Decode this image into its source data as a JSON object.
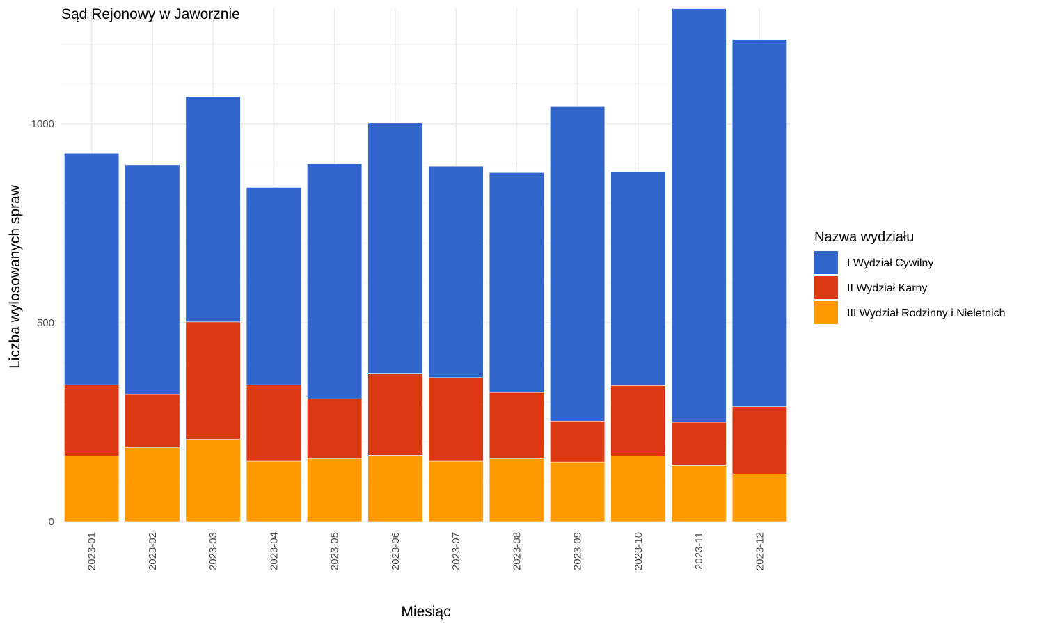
{
  "chart_data": {
    "type": "bar",
    "stacked": true,
    "title": "Sąd Rejonowy w Jaworznie",
    "xlabel": "Miesiąc",
    "ylabel": "Liczba wylosowanych spraw",
    "ylim": [
      0,
      1290
    ],
    "yticks": [
      0,
      500,
      1000
    ],
    "grid": true,
    "legend": {
      "title": "Nazwa wydziału",
      "position": "right"
    },
    "categories": [
      "2023-01",
      "2023-02",
      "2023-03",
      "2023-04",
      "2023-05",
      "2023-06",
      "2023-07",
      "2023-08",
      "2023-09",
      "2023-10",
      "2023-11",
      "2023-12"
    ],
    "series": [
      {
        "name": "III Wydział Rodzinny i Nieletnich",
        "color": "#FF9900",
        "values": [
          165,
          186,
          207,
          152,
          158,
          167,
          152,
          158,
          150,
          165,
          141,
          120
        ]
      },
      {
        "name": "II Wydział Karny",
        "color": "#DC3912",
        "values": [
          179,
          134,
          295,
          192,
          151,
          206,
          210,
          167,
          103,
          177,
          109,
          169
        ]
      },
      {
        "name": "I Wydział Cywilny",
        "color": "#3366CC",
        "values": [
          582,
          577,
          566,
          496,
          590,
          629,
          531,
          552,
          790,
          537,
          1039,
          923
        ]
      }
    ],
    "legend_order": [
      "I Wydział Cywilny",
      "II Wydział Karny",
      "III Wydział Rodzinny i Nieletnich"
    ]
  }
}
